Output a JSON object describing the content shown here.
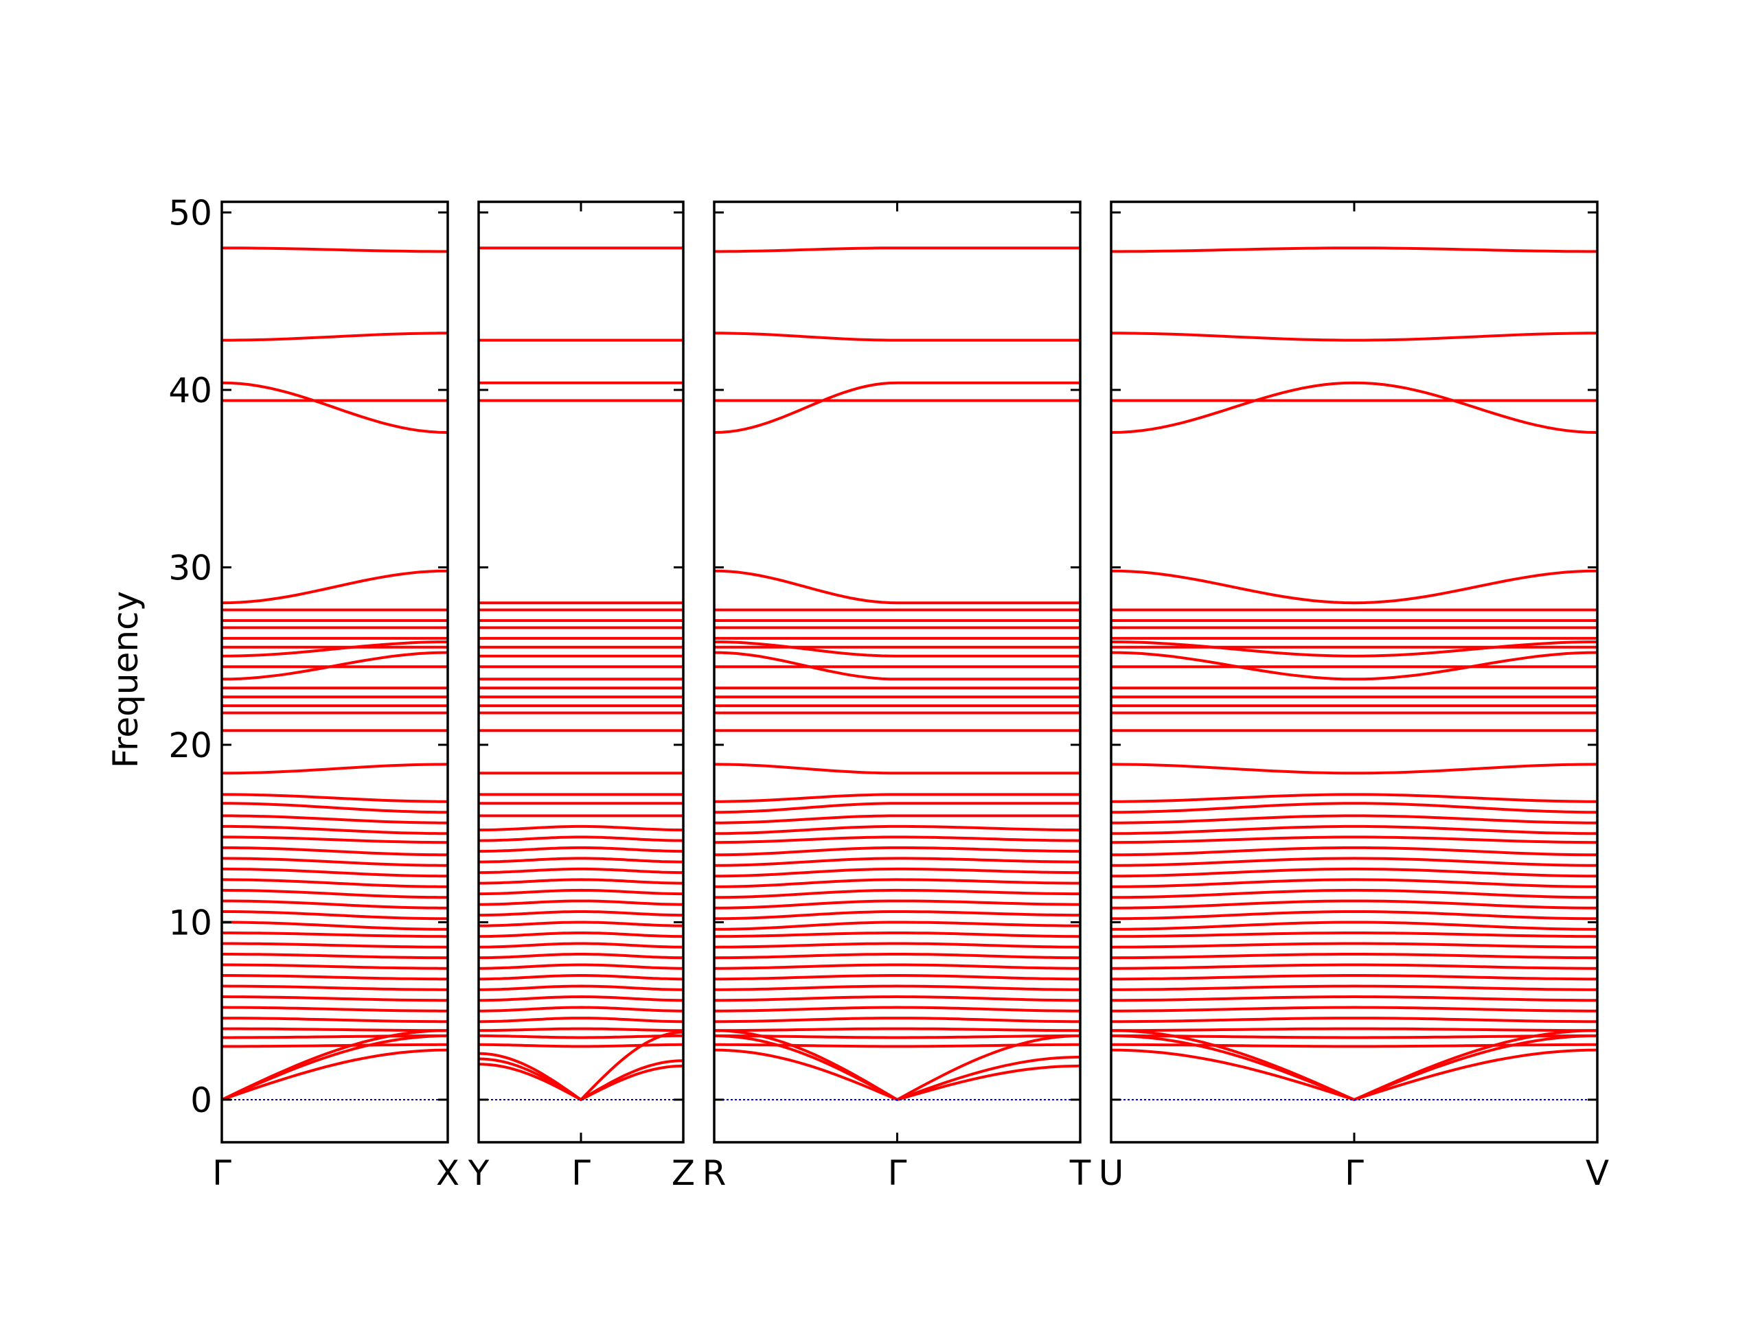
{
  "chart_data": {
    "type": "line",
    "title": "",
    "ylabel": "Frequency",
    "xlabel": "",
    "ylim": [
      -2.4,
      50.6
    ],
    "yticks": [
      0,
      10,
      20,
      30,
      40,
      50
    ],
    "series_color": "#ff0000",
    "zero_line_color": "#0000cc",
    "panels": [
      {
        "labels": [
          "Γ",
          "X"
        ],
        "length": 1,
        "bands": [
          [
            48.0,
            47.8
          ],
          [
            42.8,
            43.2
          ],
          [
            40.4,
            37.6
          ],
          [
            39.4,
            39.4
          ],
          [
            28.0,
            29.8
          ],
          [
            27.6,
            27.6
          ],
          [
            27.0,
            27.0
          ],
          [
            26.6,
            26.6
          ],
          [
            26.0,
            26.0
          ],
          [
            25.5,
            25.5
          ],
          [
            25.0,
            25.8
          ],
          [
            24.4,
            24.4
          ],
          [
            23.7,
            25.2
          ],
          [
            23.2,
            23.2
          ],
          [
            22.7,
            22.7
          ],
          [
            22.2,
            22.2
          ],
          [
            21.8,
            21.8
          ],
          [
            20.8,
            20.8
          ],
          [
            18.4,
            18.9
          ],
          [
            17.2,
            16.8
          ],
          [
            16.7,
            16.2
          ],
          [
            16.0,
            15.6
          ],
          [
            15.4,
            15.0
          ],
          [
            14.8,
            14.5
          ],
          [
            14.2,
            13.8
          ],
          [
            13.6,
            13.2
          ],
          [
            13.0,
            12.6
          ],
          [
            12.4,
            12.0
          ],
          [
            11.8,
            11.4
          ],
          [
            11.2,
            10.8
          ],
          [
            10.6,
            10.2
          ],
          [
            10.0,
            9.6
          ],
          [
            9.4,
            9.2
          ],
          [
            8.8,
            8.6
          ],
          [
            8.2,
            8.0
          ],
          [
            7.6,
            7.4
          ],
          [
            7.0,
            6.8
          ],
          [
            6.4,
            6.2
          ],
          [
            5.8,
            5.6
          ],
          [
            5.2,
            5.0
          ],
          [
            4.6,
            4.4
          ],
          [
            4.0,
            3.9
          ],
          [
            3.5,
            3.6
          ],
          [
            3.0,
            3.1
          ],
          [
            0.0,
            2.8
          ],
          [
            0.0,
            3.6
          ],
          [
            0.0,
            3.9
          ]
        ]
      },
      {
        "labels": [
          "Y",
          "Γ",
          "Z"
        ],
        "length": 0.9,
        "bands": [
          [
            48.0,
            48.0,
            48.0
          ],
          [
            42.8,
            42.8,
            42.8
          ],
          [
            40.4,
            40.4,
            40.4
          ],
          [
            39.4,
            39.4,
            39.4
          ],
          [
            28.0,
            28.0,
            28.0
          ],
          [
            27.6,
            27.6,
            27.6
          ],
          [
            27.0,
            27.0,
            27.0
          ],
          [
            26.6,
            26.6,
            26.6
          ],
          [
            26.0,
            26.0,
            26.0
          ],
          [
            25.5,
            25.5,
            25.5
          ],
          [
            25.0,
            25.0,
            25.0
          ],
          [
            24.4,
            24.4,
            24.4
          ],
          [
            23.7,
            23.7,
            23.7
          ],
          [
            23.2,
            23.2,
            23.2
          ],
          [
            22.7,
            22.7,
            22.7
          ],
          [
            22.2,
            22.2,
            22.2
          ],
          [
            21.8,
            21.8,
            21.8
          ],
          [
            20.8,
            20.8,
            20.8
          ],
          [
            18.4,
            18.4,
            18.4
          ],
          [
            17.2,
            17.2,
            17.2
          ],
          [
            16.7,
            16.7,
            16.7
          ],
          [
            16.0,
            16.0,
            16.0
          ],
          [
            15.2,
            15.4,
            15.2
          ],
          [
            14.6,
            14.8,
            14.6
          ],
          [
            14.0,
            14.2,
            14.0
          ],
          [
            13.4,
            13.6,
            13.4
          ],
          [
            12.8,
            13.0,
            12.8
          ],
          [
            12.2,
            12.4,
            12.2
          ],
          [
            11.6,
            11.8,
            11.6
          ],
          [
            11.0,
            11.2,
            11.0
          ],
          [
            10.4,
            10.6,
            10.4
          ],
          [
            9.8,
            10.0,
            9.8
          ],
          [
            9.2,
            9.4,
            9.2
          ],
          [
            8.6,
            8.8,
            8.6
          ],
          [
            8.0,
            8.2,
            8.0
          ],
          [
            7.4,
            7.6,
            7.4
          ],
          [
            6.8,
            7.0,
            6.8
          ],
          [
            6.2,
            6.4,
            6.2
          ],
          [
            5.6,
            5.8,
            5.6
          ],
          [
            5.0,
            5.2,
            5.0
          ],
          [
            4.4,
            4.6,
            4.4
          ],
          [
            3.9,
            4.0,
            3.9
          ],
          [
            3.6,
            3.5,
            3.6
          ],
          [
            3.1,
            3.0,
            3.1
          ],
          [
            2.0,
            0.0,
            1.9
          ],
          [
            2.3,
            0.0,
            2.2
          ],
          [
            2.6,
            0.0,
            3.8
          ]
        ]
      },
      {
        "labels": [
          "R",
          "Γ",
          "T"
        ],
        "length": 1.6,
        "bands": [
          [
            47.8,
            48.0,
            48.0
          ],
          [
            43.2,
            42.8,
            42.8
          ],
          [
            37.6,
            40.4,
            40.4
          ],
          [
            39.4,
            39.4,
            39.4
          ],
          [
            29.8,
            28.0,
            28.0
          ],
          [
            27.6,
            27.6,
            27.6
          ],
          [
            27.0,
            27.0,
            27.0
          ],
          [
            26.6,
            26.6,
            26.6
          ],
          [
            26.0,
            26.0,
            26.0
          ],
          [
            25.5,
            25.5,
            25.5
          ],
          [
            25.8,
            25.0,
            25.0
          ],
          [
            24.4,
            24.4,
            24.4
          ],
          [
            25.2,
            23.7,
            23.7
          ],
          [
            23.2,
            23.2,
            23.2
          ],
          [
            22.7,
            22.7,
            22.7
          ],
          [
            22.2,
            22.2,
            22.2
          ],
          [
            21.8,
            21.8,
            21.8
          ],
          [
            20.8,
            20.8,
            20.8
          ],
          [
            18.9,
            18.4,
            18.4
          ],
          [
            16.8,
            17.2,
            17.2
          ],
          [
            16.2,
            16.7,
            16.7
          ],
          [
            15.6,
            16.0,
            16.0
          ],
          [
            15.0,
            15.4,
            15.2
          ],
          [
            14.5,
            14.8,
            14.6
          ],
          [
            13.8,
            14.2,
            14.0
          ],
          [
            13.2,
            13.6,
            13.4
          ],
          [
            12.6,
            13.0,
            12.8
          ],
          [
            12.0,
            12.4,
            12.2
          ],
          [
            11.4,
            11.8,
            11.6
          ],
          [
            10.8,
            11.2,
            11.0
          ],
          [
            10.2,
            10.6,
            10.4
          ],
          [
            9.6,
            10.0,
            9.8
          ],
          [
            9.2,
            9.4,
            9.2
          ],
          [
            8.6,
            8.8,
            8.6
          ],
          [
            8.0,
            8.2,
            8.0
          ],
          [
            7.4,
            7.6,
            7.4
          ],
          [
            6.8,
            7.0,
            6.8
          ],
          [
            6.2,
            6.4,
            6.2
          ],
          [
            5.6,
            5.8,
            5.6
          ],
          [
            5.0,
            5.2,
            5.0
          ],
          [
            4.4,
            4.6,
            4.4
          ],
          [
            3.9,
            4.0,
            3.9
          ],
          [
            3.6,
            3.5,
            3.6
          ],
          [
            3.1,
            3.0,
            3.1
          ],
          [
            2.8,
            0.0,
            1.9
          ],
          [
            3.6,
            0.0,
            2.4
          ],
          [
            3.9,
            0.0,
            3.6
          ]
        ]
      },
      {
        "labels": [
          "U",
          "Γ",
          "V"
        ],
        "length": 2.1,
        "bands": [
          [
            47.8,
            48.0,
            47.8
          ],
          [
            43.2,
            42.8,
            43.2
          ],
          [
            37.6,
            40.4,
            37.6
          ],
          [
            39.4,
            39.4,
            39.4
          ],
          [
            29.8,
            28.0,
            29.8
          ],
          [
            27.6,
            27.6,
            27.6
          ],
          [
            27.0,
            27.0,
            27.0
          ],
          [
            26.6,
            26.6,
            26.6
          ],
          [
            26.0,
            26.0,
            26.0
          ],
          [
            25.5,
            25.5,
            25.5
          ],
          [
            25.8,
            25.0,
            25.8
          ],
          [
            24.4,
            24.4,
            24.4
          ],
          [
            25.2,
            23.7,
            25.2
          ],
          [
            23.2,
            23.2,
            23.2
          ],
          [
            22.7,
            22.7,
            22.7
          ],
          [
            22.2,
            22.2,
            22.2
          ],
          [
            21.8,
            21.8,
            21.8
          ],
          [
            20.8,
            20.8,
            20.8
          ],
          [
            18.9,
            18.4,
            18.9
          ],
          [
            16.8,
            17.2,
            16.8
          ],
          [
            16.2,
            16.7,
            16.2
          ],
          [
            15.6,
            16.0,
            15.6
          ],
          [
            15.0,
            15.4,
            15.0
          ],
          [
            14.5,
            14.8,
            14.5
          ],
          [
            13.8,
            14.2,
            13.8
          ],
          [
            13.2,
            13.6,
            13.2
          ],
          [
            12.6,
            13.0,
            12.6
          ],
          [
            12.0,
            12.4,
            12.0
          ],
          [
            11.4,
            11.8,
            11.4
          ],
          [
            10.8,
            11.2,
            10.8
          ],
          [
            10.2,
            10.6,
            10.2
          ],
          [
            9.6,
            10.0,
            9.6
          ],
          [
            9.2,
            9.4,
            9.2
          ],
          [
            8.6,
            8.8,
            8.6
          ],
          [
            8.0,
            8.2,
            8.0
          ],
          [
            7.4,
            7.6,
            7.4
          ],
          [
            6.8,
            7.0,
            6.8
          ],
          [
            6.2,
            6.4,
            6.2
          ],
          [
            5.6,
            5.8,
            5.6
          ],
          [
            5.0,
            5.2,
            5.0
          ],
          [
            4.4,
            4.6,
            4.4
          ],
          [
            3.9,
            4.0,
            3.9
          ],
          [
            3.6,
            3.5,
            3.6
          ],
          [
            3.1,
            3.0,
            3.1
          ],
          [
            2.8,
            0.0,
            2.8
          ],
          [
            3.6,
            0.0,
            3.6
          ],
          [
            3.9,
            0.0,
            3.9
          ]
        ]
      }
    ]
  }
}
